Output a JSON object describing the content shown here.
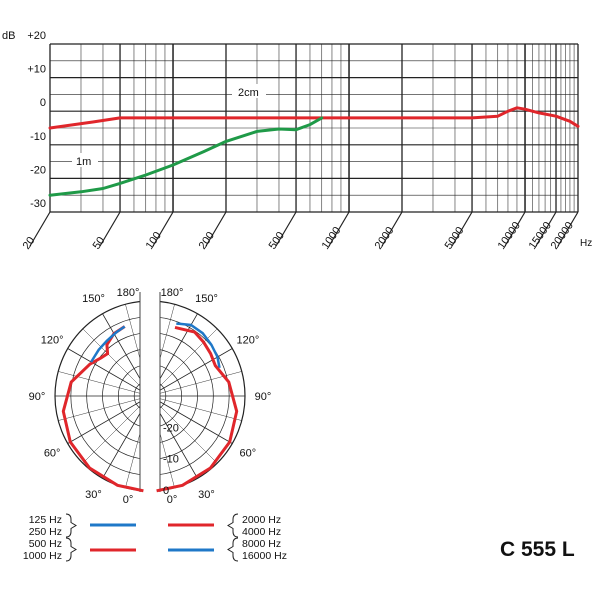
{
  "model": "C 555 L",
  "chart_data": [
    {
      "type": "line",
      "title": "",
      "xlabel": "Hz",
      "ylabel": "dB",
      "xscale": "log",
      "xlim": [
        20,
        20000
      ],
      "ylim": [
        -30,
        20
      ],
      "y_ticks": [
        "+20",
        "+10",
        "0",
        "-10",
        "-20",
        "-30"
      ],
      "x_ticks": [
        "20",
        "50",
        "100",
        "200",
        "500",
        "1000",
        "2000",
        "5000",
        "10000",
        "15000",
        "20000"
      ],
      "grid": true,
      "annotations": [
        "2cm",
        "1m"
      ],
      "series": [
        {
          "name": "2cm",
          "color": "#e0262b",
          "x": [
            20,
            35,
            50,
            100,
            1000,
            5000,
            7000,
            8000,
            9000,
            10000,
            12000,
            15000,
            18000,
            20000
          ],
          "y": [
            -5,
            -3.2,
            -2,
            -2,
            -2,
            -2,
            -1.5,
            0,
            1,
            0.6,
            -0.5,
            -1.5,
            -3,
            -4.5
          ]
        },
        {
          "name": "1m",
          "color": "#1f9a48",
          "x": [
            20,
            30,
            40,
            50,
            70,
            100,
            150,
            200,
            300,
            400,
            500,
            600,
            700
          ],
          "y": [
            -25,
            -24,
            -23,
            -21.5,
            -19,
            -16,
            -12,
            -9,
            -6,
            -5.3,
            -5.5,
            -4,
            -2
          ]
        }
      ]
    },
    {
      "type": "polar",
      "angle_labels": [
        "180°",
        "150°",
        "120°",
        "90°",
        "60°",
        "30°",
        "0°"
      ],
      "r_labels": [
        "-20",
        "-10",
        "0"
      ],
      "legend": {
        "left": {
          "labels": [
            "125 Hz",
            "250 Hz",
            "500 Hz",
            "1000 Hz"
          ],
          "colors": [
            "#1f78c8",
            "#e0262b"
          ]
        },
        "right": {
          "labels": [
            "2000 Hz",
            "4000 Hz",
            "8000 Hz",
            "16000 Hz"
          ],
          "colors": [
            "#e0262b",
            "#1f78c8"
          ]
        }
      }
    }
  ]
}
